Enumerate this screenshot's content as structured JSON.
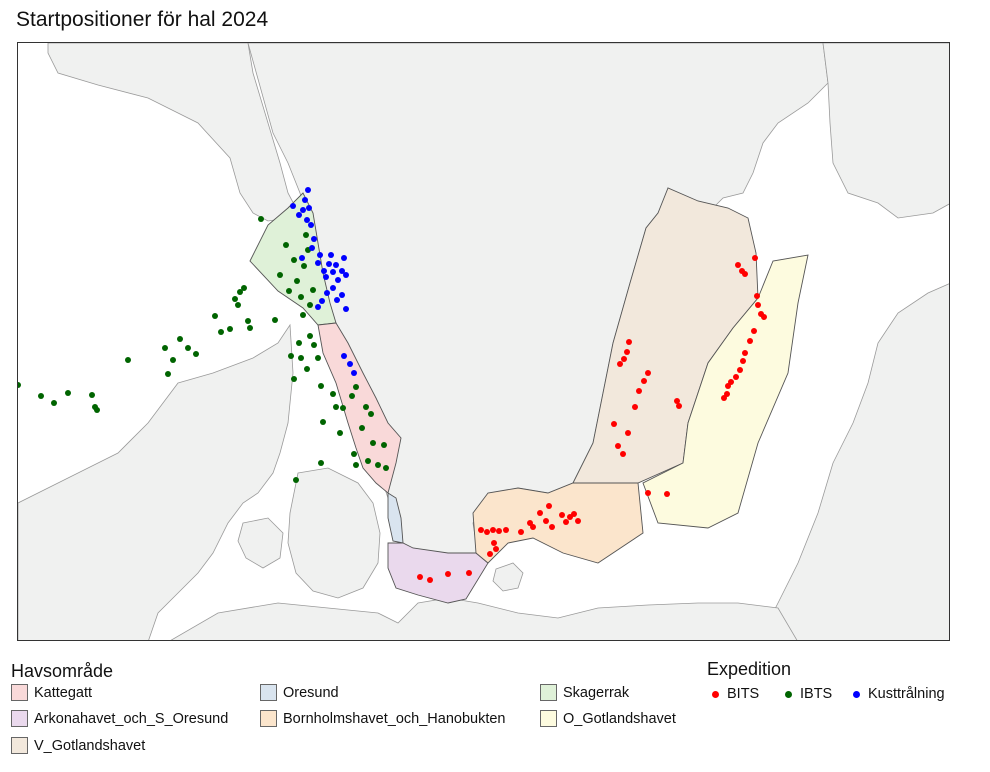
{
  "title": "Startpositioner för hal 2024",
  "legend_area": {
    "title": "Havsområde",
    "items": [
      {
        "label": "Kattegatt",
        "color": "#f9d9d9"
      },
      {
        "label": "Arkonahavet_och_S_Oresund",
        "color": "#ead9ed"
      },
      {
        "label": "V_Gotlandshavet",
        "color": "#f2e8dc"
      },
      {
        "label": "Oresund",
        "color": "#d9e4ef"
      },
      {
        "label": "Bornholmshavet_och_Hanobukten",
        "color": "#fbe5cc"
      },
      {
        "label": "Skagerrak",
        "color": "#dff1d8"
      },
      {
        "label": "O_Gotlandshavet",
        "color": "#fdfbdf"
      }
    ]
  },
  "legend_exp": {
    "title": "Expedition",
    "items": [
      {
        "label": "BITS",
        "color": "#ff0000"
      },
      {
        "label": "IBTS",
        "color": "#006400"
      },
      {
        "label": "Kusttrålning",
        "color": "#0000ff"
      }
    ]
  }
}
